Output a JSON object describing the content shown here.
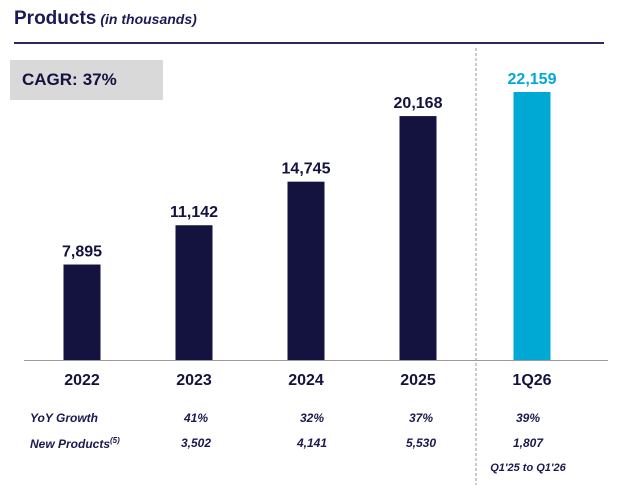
{
  "header": {
    "title": "Products",
    "subtitle": "(in thousands)"
  },
  "cagr": {
    "label": "CAGR:",
    "value": "37%"
  },
  "chart_data": {
    "type": "bar",
    "title": "Products",
    "subtitle": "(in thousands)",
    "categories": [
      "2022",
      "2023",
      "2024",
      "2025",
      "1Q26"
    ],
    "values": [
      7895,
      11142,
      14745,
      20168,
      22159
    ],
    "value_labels": [
      "7,895",
      "11,142",
      "14,745",
      "20,168",
      "22,159"
    ],
    "colors": [
      "#14123f",
      "#14123f",
      "#14123f",
      "#14123f",
      "#00a9d4"
    ],
    "ylim": [
      0,
      22159
    ],
    "grid": false,
    "legend": "none"
  },
  "metrics": {
    "yoy": {
      "label": "YoY Growth",
      "values": [
        "41%",
        "32%",
        "37%",
        "39%"
      ]
    },
    "new_products": {
      "label": "New Products",
      "superscript": "(5)",
      "values": [
        "3,502",
        "4,141",
        "5,530",
        "1,807"
      ]
    },
    "footnote": "Q1'25 to Q1'26"
  },
  "colors": {
    "navy": "#14123f",
    "cyan": "#00a9d4",
    "cagr_bg": "#d9d9d9",
    "divider": "#9a9a9a"
  }
}
